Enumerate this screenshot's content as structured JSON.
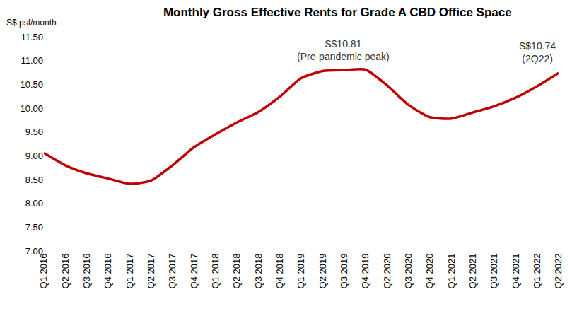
{
  "chart_data": {
    "type": "line",
    "title": "Monthly Gross Effective Rents for Grade A CBD Office Space",
    "y_label": "S$ psf/month",
    "categories": [
      "Q1 2016",
      "Q2 2016",
      "Q3 2016",
      "Q4 2016",
      "Q1 2017",
      "Q2 2017",
      "Q3 2017",
      "Q4 2017",
      "Q1 2018",
      "Q2 2018",
      "Q3 2018",
      "Q4 2018",
      "Q1 2019",
      "Q2 2019",
      "Q3 2019",
      "Q4 2019",
      "Q2 2020",
      "Q3 2020",
      "Q4 2020",
      "Q1 2021",
      "Q2 2021",
      "Q3 2021",
      "Q4 2021",
      "Q1 2022",
      "Q2 2022"
    ],
    "values": [
      9.06,
      8.8,
      8.63,
      8.52,
      8.41,
      8.48,
      8.8,
      9.18,
      9.45,
      9.7,
      9.92,
      10.24,
      10.63,
      10.78,
      10.8,
      10.81,
      10.48,
      10.07,
      9.81,
      9.78,
      9.91,
      10.04,
      10.22,
      10.46,
      10.74
    ],
    "color": "#c00000",
    "ylim": [
      7,
      11.5
    ],
    "yticks": [
      {
        "value": 7,
        "label": "7.00"
      },
      {
        "value": 7.5,
        "label": "7.50"
      },
      {
        "value": 8,
        "label": "8.00"
      },
      {
        "value": 8.5,
        "label": "8.50"
      },
      {
        "value": 9,
        "label": "9.00"
      },
      {
        "value": 9.5,
        "label": "9.50"
      },
      {
        "value": 10,
        "label": "10.00"
      },
      {
        "value": 10.5,
        "label": "10.50"
      },
      {
        "value": 11,
        "label": "11.00"
      },
      {
        "value": 11.5,
        "label": "11.50"
      }
    ],
    "grid": false,
    "annotations": [
      {
        "category": "Q4 2019",
        "value": 10.81,
        "text": [
          "S$10.81",
          "(Pre-pandemic peak)"
        ]
      },
      {
        "category": "Q2 2022",
        "value": 10.74,
        "text": [
          "S$10.74",
          "(2Q22)"
        ]
      }
    ]
  }
}
